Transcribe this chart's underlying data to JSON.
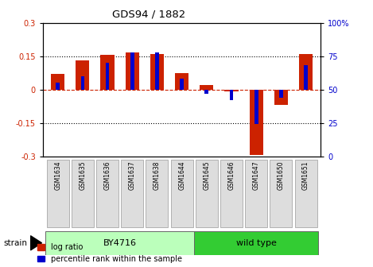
{
  "title": "GDS94 / 1882",
  "samples": [
    "GSM1634",
    "GSM1635",
    "GSM1636",
    "GSM1637",
    "GSM1638",
    "GSM1644",
    "GSM1645",
    "GSM1646",
    "GSM1647",
    "GSM1650",
    "GSM1651"
  ],
  "log_ratio": [
    0.07,
    0.13,
    0.155,
    0.165,
    0.16,
    0.075,
    0.02,
    -0.01,
    -0.295,
    -0.07,
    0.16
  ],
  "percentile_rank": [
    55,
    60,
    70,
    78,
    78,
    58,
    47,
    42,
    24,
    44,
    68
  ],
  "percentile_baseline": 50,
  "strain_groups": [
    {
      "label": "BY4716",
      "start": 0,
      "end": 5,
      "color": "#bbffbb"
    },
    {
      "label": "wild type",
      "start": 6,
      "end": 10,
      "color": "#33cc33"
    }
  ],
  "ylim": [
    -0.3,
    0.3
  ],
  "y2lim": [
    0,
    100
  ],
  "yticks": [
    -0.3,
    -0.15,
    0,
    0.15,
    0.3
  ],
  "y2ticks": [
    0,
    25,
    50,
    75,
    100
  ],
  "hlines": [
    0.15,
    -0.15
  ],
  "bar_color_red": "#cc2200",
  "bar_color_blue": "#0000cc",
  "dashed_zero_color": "#cc2200",
  "background_color": "#ffffff",
  "tick_label_color_left": "#cc2200",
  "tick_label_color_right": "#0000cc",
  "legend_items": [
    "log ratio",
    "percentile rank within the sample"
  ],
  "strain_label": "strain",
  "red_bar_width": 0.55,
  "blue_bar_width": 0.15
}
